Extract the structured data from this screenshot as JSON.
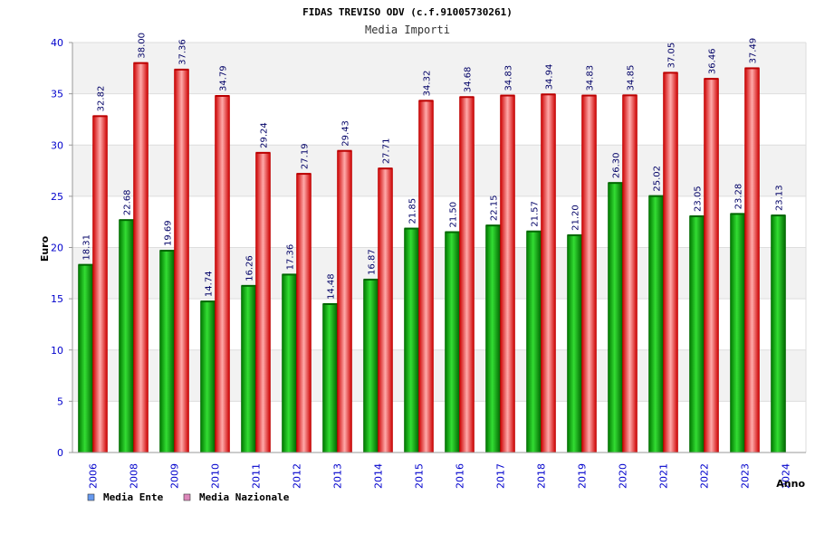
{
  "chart_data": {
    "type": "bar",
    "title": "FIDAS TREVISO ODV (c.f.91005730261)",
    "subtitle": "Media Importi",
    "xlabel": "Anno",
    "ylabel": "Euro",
    "ylim": [
      0,
      40
    ],
    "yticks": [
      0,
      5,
      10,
      15,
      20,
      25,
      30,
      35,
      40
    ],
    "grid": true,
    "legend_position": "bottom-left",
    "categories": [
      "2006",
      "2008",
      "2009",
      "2010",
      "2011",
      "2012",
      "2013",
      "2014",
      "2015",
      "2016",
      "2017",
      "2018",
      "2019",
      "2020",
      "2021",
      "2022",
      "2023",
      "2024"
    ],
    "series": [
      {
        "name": "Media Ente",
        "color": "#00aa00",
        "legend_color": "#6699ee",
        "values": [
          18.31,
          22.68,
          19.69,
          14.74,
          16.26,
          17.36,
          14.48,
          16.87,
          21.85,
          21.5,
          22.15,
          21.57,
          21.2,
          26.3,
          25.02,
          23.05,
          23.28,
          23.13
        ],
        "labels": [
          "18.31",
          "22.68",
          "19.69",
          "14.74",
          "16.26",
          "17.36",
          "14.48",
          "16.87",
          "21.85",
          "21.50",
          "22.15",
          "21.57",
          "21.20",
          "26.30",
          "25.02",
          "23.05",
          "23.28",
          "23.13"
        ]
      },
      {
        "name": "Media Nazionale",
        "color": "#ee2222",
        "legend_color": "#dd88bb",
        "values": [
          32.82,
          38.0,
          37.36,
          34.79,
          29.24,
          27.19,
          29.43,
          27.71,
          34.32,
          34.68,
          34.83,
          34.94,
          34.83,
          34.85,
          37.05,
          36.46,
          37.49,
          null
        ],
        "labels": [
          "32.82",
          "38.00",
          "37.36",
          "34.79",
          "29.24",
          "27.19",
          "29.43",
          "27.71",
          "34.32",
          "34.68",
          "34.83",
          "34.94",
          "34.83",
          "34.85",
          "37.05",
          "36.46",
          "37.49",
          ""
        ]
      }
    ]
  }
}
